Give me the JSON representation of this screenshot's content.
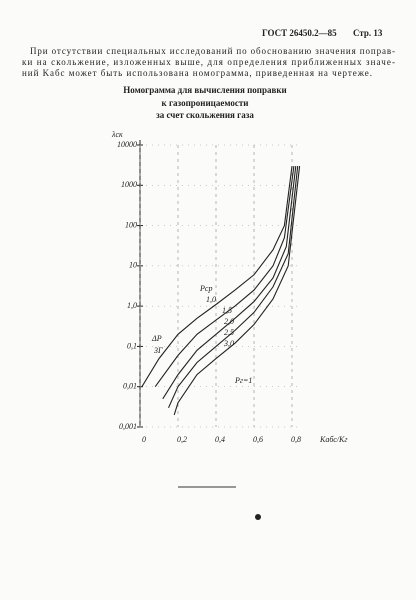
{
  "header": {
    "standard": "ГОСТ 26450.2—85",
    "page": "Стр. 13"
  },
  "body": {
    "lines": [
      "При отсутствии специальных исследований по обоснованию значения поправ-",
      "ки на скольжение, изложенных выше, для определения приближенных значе-",
      "ний Kабс может быть использована номограмма, приведенная на чертеже."
    ]
  },
  "chart_data": {
    "type": "line",
    "title": [
      "Номограмма для вычисления поправки",
      "к газопроницаемости",
      "за счет скольжения газа"
    ],
    "y_label": "λск",
    "x_label": "Kабс/Kг",
    "legend_title": "Pср",
    "annotations": [
      "ΔP",
      "3Г",
      "Pг=1"
    ],
    "log_y": true,
    "grid": true,
    "xlim": [
      0,
      1.0
    ],
    "ylim": [
      0.001,
      10000
    ],
    "xticks": [
      0,
      {
        "value": 0.2,
        "label": "0,2"
      },
      {
        "value": 0.4,
        "label": "0,4"
      },
      {
        "value": 0.6,
        "label": "0,6"
      },
      {
        "value": 0.8,
        "label": "0,8"
      }
    ],
    "yticks": [
      {
        "value": 0.001,
        "label": "0,001"
      },
      {
        "value": 0.01,
        "label": "0,01"
      },
      {
        "value": 0.1,
        "label": "0,1"
      },
      {
        "value": 1,
        "label": "1,0"
      },
      10,
      100,
      1000,
      10000
    ],
    "series": [
      {
        "name": "1,0",
        "color": "#222",
        "x": [
          0.01,
          0.1,
          0.2,
          0.3,
          0.4,
          0.5,
          0.6,
          0.7,
          0.76,
          0.8
        ],
        "values": [
          0.01,
          0.05,
          0.2,
          0.5,
          1.1,
          2.5,
          6,
          25,
          100,
          3000
        ]
      },
      {
        "name": "1,5",
        "color": "#222",
        "x": [
          0.08,
          0.2,
          0.3,
          0.4,
          0.5,
          0.6,
          0.7,
          0.76,
          0.81
        ],
        "values": [
          0.01,
          0.06,
          0.2,
          0.45,
          1,
          2.5,
          10,
          50,
          3000
        ]
      },
      {
        "name": "2,0",
        "color": "#222",
        "x": [
          0.12,
          0.2,
          0.3,
          0.4,
          0.5,
          0.6,
          0.7,
          0.77,
          0.82
        ],
        "values": [
          0.005,
          0.02,
          0.08,
          0.2,
          0.5,
          1.3,
          5,
          30,
          3000
        ]
      },
      {
        "name": "2,5",
        "color": "#222",
        "x": [
          0.15,
          0.2,
          0.3,
          0.4,
          0.5,
          0.6,
          0.7,
          0.78,
          0.83
        ],
        "values": [
          0.003,
          0.01,
          0.04,
          0.1,
          0.25,
          0.7,
          3,
          20,
          3000
        ]
      },
      {
        "name": "3,0",
        "color": "#222",
        "x": [
          0.18,
          0.2,
          0.3,
          0.4,
          0.5,
          0.6,
          0.7,
          0.78,
          0.84
        ],
        "values": [
          0.002,
          0.004,
          0.02,
          0.05,
          0.12,
          0.35,
          1.5,
          10,
          3000
        ]
      }
    ]
  }
}
